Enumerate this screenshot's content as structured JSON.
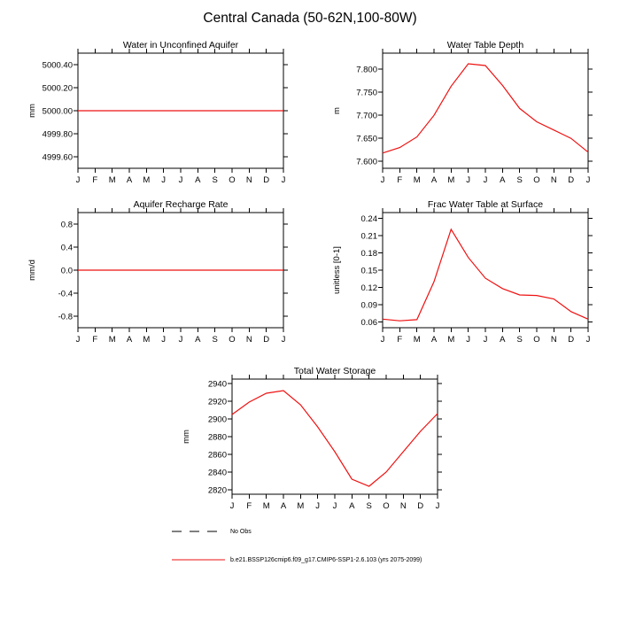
{
  "page_title": "Central Canada (50-62N,100-80W)",
  "legend": {
    "no_obs_label": "No Obs",
    "series_label": "b.e21.BSSP126cmip6.f09_g17.CMIP6-SSP1-2.6.103 (yrs 2075-2099)",
    "series_color": "#ee1111",
    "no_obs_color": "#000000"
  },
  "chart_data": [
    {
      "type": "line",
      "title": "Water in Unconfined Aquifer",
      "xlabel": "",
      "ylabel": "mm",
      "categories": [
        "J",
        "F",
        "M",
        "A",
        "M",
        "J",
        "J",
        "A",
        "S",
        "O",
        "N",
        "D",
        "J"
      ],
      "values": [
        5000.0,
        5000.0,
        5000.0,
        5000.0,
        5000.0,
        5000.0,
        5000.0,
        5000.0,
        5000.0,
        5000.0,
        5000.0,
        5000.0,
        5000.0
      ],
      "ylim": [
        4999.5,
        5000.5
      ],
      "ytick_values": [
        4999.6,
        4999.8,
        5000.0,
        5000.2,
        5000.4
      ],
      "ytick_labels": [
        "4999.60",
        "4999.80",
        "5000.00",
        "5000.20",
        "5000.40"
      ],
      "line_color": "#ee1111",
      "grid": false
    },
    {
      "type": "line",
      "title": "Water Table Depth",
      "xlabel": "",
      "ylabel": "m",
      "categories": [
        "J",
        "F",
        "M",
        "A",
        "M",
        "J",
        "J",
        "A",
        "S",
        "O",
        "N",
        "D",
        "J"
      ],
      "values": [
        7.618,
        7.63,
        7.653,
        7.7,
        7.763,
        7.812,
        7.808,
        7.765,
        7.715,
        7.686,
        7.668,
        7.65,
        7.62
      ],
      "ylim": [
        7.585,
        7.835
      ],
      "ytick_values": [
        7.6,
        7.65,
        7.7,
        7.75,
        7.8
      ],
      "ytick_labels": [
        "7.600",
        "7.650",
        "7.700",
        "7.750",
        "7.800"
      ],
      "line_color": "#ee1111",
      "grid": false
    },
    {
      "type": "line",
      "title": "Aquifer Recharge Rate",
      "xlabel": "",
      "ylabel": "mm/d",
      "categories": [
        "J",
        "F",
        "M",
        "A",
        "M",
        "J",
        "J",
        "A",
        "S",
        "O",
        "N",
        "D",
        "J"
      ],
      "values": [
        0.0,
        0.0,
        0.0,
        0.0,
        0.0,
        0.0,
        0.0,
        0.0,
        0.0,
        0.0,
        0.0,
        0.0,
        0.0
      ],
      "ylim": [
        -1.0,
        1.0
      ],
      "ytick_values": [
        -0.8,
        -0.4,
        0.0,
        0.4,
        0.8
      ],
      "ytick_labels": [
        "-0.8",
        "-0.4",
        "0.0",
        "0.4",
        "0.8"
      ],
      "line_color": "#ee1111",
      "grid": false
    },
    {
      "type": "line",
      "title": "Frac Water Table at Surface",
      "xlabel": "",
      "ylabel": "unitless [0-1]",
      "categories": [
        "J",
        "F",
        "M",
        "A",
        "M",
        "J",
        "J",
        "A",
        "S",
        "O",
        "N",
        "D",
        "J"
      ],
      "values": [
        0.065,
        0.062,
        0.064,
        0.13,
        0.221,
        0.172,
        0.136,
        0.118,
        0.107,
        0.106,
        0.1,
        0.078,
        0.065
      ],
      "ylim": [
        0.05,
        0.25
      ],
      "ytick_values": [
        0.06,
        0.09,
        0.12,
        0.15,
        0.18,
        0.21,
        0.24
      ],
      "ytick_labels": [
        "0.06",
        "0.09",
        "0.12",
        "0.15",
        "0.18",
        "0.21",
        "0.24"
      ],
      "line_color": "#ee1111",
      "grid": false
    },
    {
      "type": "line",
      "title": "Total Water Storage",
      "xlabel": "",
      "ylabel": "mm",
      "categories": [
        "J",
        "F",
        "M",
        "A",
        "M",
        "J",
        "J",
        "A",
        "S",
        "O",
        "N",
        "D",
        "J"
      ],
      "values": [
        2905,
        2919,
        2929,
        2932,
        2916,
        2891,
        2863,
        2832,
        2824,
        2840,
        2863,
        2886,
        2906
      ],
      "ylim": [
        2815,
        2945
      ],
      "ytick_values": [
        2820,
        2840,
        2860,
        2880,
        2900,
        2920,
        2940
      ],
      "ytick_labels": [
        "2820",
        "2840",
        "2860",
        "2880",
        "2900",
        "2920",
        "2940"
      ],
      "line_color": "#ee1111",
      "grid": false
    }
  ]
}
